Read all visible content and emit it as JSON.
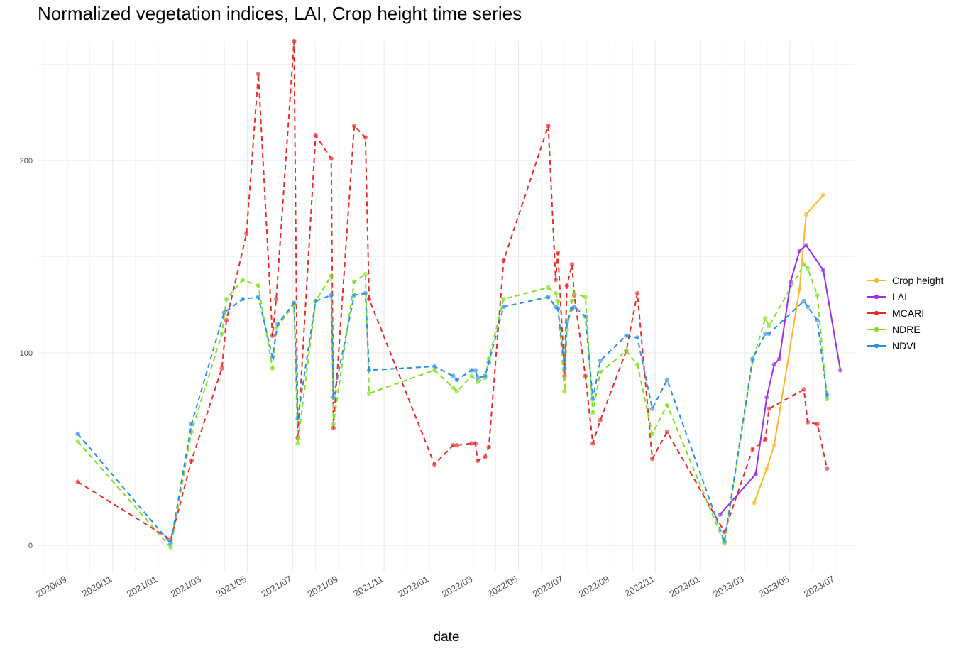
{
  "chart_data": {
    "type": "line",
    "title": "Normalized vegetation indices, LAI, Crop height time series",
    "xlabel": "date",
    "ylabel": "",
    "x_range": [
      "2020-07-23",
      "2023-07-28"
    ],
    "ylim": [
      -14,
      262
    ],
    "y_ticks": [
      0,
      100,
      200
    ],
    "y_minor_ticks": [
      50,
      150,
      250
    ],
    "x_tick_labels": [
      "2020/09",
      "2020/11",
      "2021/01",
      "2021/03",
      "2021/05",
      "2021/07",
      "2021/09",
      "2021/11",
      "2022/01",
      "2022/03",
      "2022/05",
      "2022/07",
      "2022/09",
      "2022/11",
      "2023/01",
      "2023/03",
      "2023/05",
      "2023/07"
    ],
    "x_tick_dates": [
      "2020-09-01",
      "2020-11-01",
      "2021-01-01",
      "2021-03-01",
      "2021-05-01",
      "2021-07-01",
      "2021-09-01",
      "2021-11-01",
      "2022-01-01",
      "2022-03-01",
      "2022-05-01",
      "2022-07-01",
      "2022-09-01",
      "2022-11-01",
      "2023-01-01",
      "2023-03-01",
      "2023-05-01",
      "2023-07-01"
    ],
    "grid": true,
    "legend_position": "right",
    "series": [
      {
        "name": "Crop height",
        "color": "#FBB829",
        "dashed": false,
        "points": [
          [
            "2023-03-14",
            22
          ],
          [
            "2023-03-31",
            40
          ],
          [
            "2023-04-10",
            52
          ],
          [
            "2023-05-14",
            133
          ],
          [
            "2023-05-23",
            172
          ],
          [
            "2023-06-15",
            182
          ]
        ]
      },
      {
        "name": "LAI",
        "color": "#9B30E0",
        "dashed": false,
        "points": [
          [
            "2023-01-27",
            16
          ],
          [
            "2023-03-16",
            37
          ],
          [
            "2023-03-31",
            77
          ],
          [
            "2023-04-10",
            94
          ],
          [
            "2023-04-17",
            97
          ],
          [
            "2023-05-02",
            137
          ],
          [
            "2023-05-14",
            153
          ],
          [
            "2023-05-23",
            156
          ],
          [
            "2023-06-15",
            143
          ],
          [
            "2023-07-08",
            91
          ]
        ]
      },
      {
        "name": "MCARI",
        "color": "#E52B2B",
        "dashed": true,
        "points": [
          [
            "2020-09-15",
            33
          ],
          [
            "2021-01-18",
            3
          ],
          [
            "2021-02-15",
            44
          ],
          [
            "2021-03-28",
            92
          ],
          [
            "2021-04-03",
            117
          ],
          [
            "2021-04-30",
            162
          ],
          [
            "2021-05-16",
            245
          ],
          [
            "2021-06-04",
            109
          ],
          [
            "2021-06-09",
            128
          ],
          [
            "2021-07-03",
            262
          ],
          [
            "2021-07-08",
            56
          ],
          [
            "2021-08-01",
            213
          ],
          [
            "2021-08-22",
            201
          ],
          [
            "2021-08-25",
            61
          ],
          [
            "2021-09-22",
            218
          ],
          [
            "2021-10-07",
            212
          ],
          [
            "2021-10-12",
            128
          ],
          [
            "2022-01-08",
            42
          ],
          [
            "2022-02-02",
            52
          ],
          [
            "2022-02-07",
            52
          ],
          [
            "2022-02-27",
            53
          ],
          [
            "2022-03-04",
            53
          ],
          [
            "2022-03-07",
            44
          ],
          [
            "2022-03-17",
            46
          ],
          [
            "2022-03-22",
            51
          ],
          [
            "2022-04-11",
            148
          ],
          [
            "2022-06-10",
            218
          ],
          [
            "2022-06-20",
            138
          ],
          [
            "2022-06-23",
            152
          ],
          [
            "2022-07-02",
            88
          ],
          [
            "2022-07-05",
            135
          ],
          [
            "2022-07-12",
            146
          ],
          [
            "2022-07-15",
            130
          ],
          [
            "2022-07-30",
            88
          ],
          [
            "2022-08-09",
            53
          ],
          [
            "2022-08-19",
            65
          ],
          [
            "2022-09-23",
            101
          ],
          [
            "2022-10-08",
            131
          ],
          [
            "2022-10-28",
            45
          ],
          [
            "2022-11-17",
            59
          ],
          [
            "2023-02-02",
            7
          ],
          [
            "2023-03-12",
            50
          ],
          [
            "2023-03-29",
            55
          ],
          [
            "2023-04-03",
            71
          ],
          [
            "2023-05-20",
            81
          ],
          [
            "2023-05-25",
            64
          ],
          [
            "2023-06-07",
            63
          ],
          [
            "2023-06-20",
            40
          ]
        ]
      },
      {
        "name": "NDRE",
        "color": "#7FE021",
        "dashed": true,
        "points": [
          [
            "2020-09-15",
            54
          ],
          [
            "2021-01-18",
            -1
          ],
          [
            "2021-02-15",
            59
          ],
          [
            "2021-03-28",
            110
          ],
          [
            "2021-04-03",
            128
          ],
          [
            "2021-04-25",
            138
          ],
          [
            "2021-05-16",
            135
          ],
          [
            "2021-06-04",
            92
          ],
          [
            "2021-06-09",
            113
          ],
          [
            "2021-07-03",
            125
          ],
          [
            "2021-07-08",
            53
          ],
          [
            "2021-08-01",
            127
          ],
          [
            "2021-08-22",
            140
          ],
          [
            "2021-08-25",
            63
          ],
          [
            "2021-09-22",
            137
          ],
          [
            "2021-10-07",
            141
          ],
          [
            "2021-10-12",
            79
          ],
          [
            "2022-01-08",
            91
          ],
          [
            "2022-02-02",
            82
          ],
          [
            "2022-02-07",
            80
          ],
          [
            "2022-02-27",
            88
          ],
          [
            "2022-03-07",
            85
          ],
          [
            "2022-03-17",
            87
          ],
          [
            "2022-03-22",
            97
          ],
          [
            "2022-04-11",
            128
          ],
          [
            "2022-06-10",
            134
          ],
          [
            "2022-06-20",
            131
          ],
          [
            "2022-06-23",
            127
          ],
          [
            "2022-07-02",
            80
          ],
          [
            "2022-07-05",
            112
          ],
          [
            "2022-07-12",
            127
          ],
          [
            "2022-07-15",
            131
          ],
          [
            "2022-07-30",
            129
          ],
          [
            "2022-08-09",
            69
          ],
          [
            "2022-08-19",
            90
          ],
          [
            "2022-09-23",
            101
          ],
          [
            "2022-10-08",
            94
          ],
          [
            "2022-10-28",
            58
          ],
          [
            "2022-11-17",
            73
          ],
          [
            "2023-02-02",
            1
          ],
          [
            "2023-03-12",
            96
          ],
          [
            "2023-03-29",
            118
          ],
          [
            "2023-04-03",
            114
          ],
          [
            "2023-05-20",
            146
          ],
          [
            "2023-05-25",
            144
          ],
          [
            "2023-06-07",
            130
          ],
          [
            "2023-06-20",
            76
          ]
        ]
      },
      {
        "name": "NDVI",
        "color": "#2A8FE0",
        "dashed": true,
        "points": [
          [
            "2020-09-15",
            58
          ],
          [
            "2021-01-18",
            1
          ],
          [
            "2021-02-15",
            63
          ],
          [
            "2021-03-31",
            121
          ],
          [
            "2021-04-25",
            128
          ],
          [
            "2021-05-16",
            129
          ],
          [
            "2021-06-04",
            98
          ],
          [
            "2021-06-11",
            115
          ],
          [
            "2021-07-03",
            126
          ],
          [
            "2021-07-08",
            66
          ],
          [
            "2021-08-01",
            127
          ],
          [
            "2021-08-22",
            130
          ],
          [
            "2021-08-25",
            77
          ],
          [
            "2021-09-22",
            130
          ],
          [
            "2021-10-07",
            131
          ],
          [
            "2021-10-12",
            91
          ],
          [
            "2022-01-08",
            93
          ],
          [
            "2022-02-02",
            88
          ],
          [
            "2022-02-07",
            86
          ],
          [
            "2022-02-27",
            91
          ],
          [
            "2022-03-04",
            91
          ],
          [
            "2022-03-07",
            87
          ],
          [
            "2022-03-17",
            88
          ],
          [
            "2022-03-22",
            95
          ],
          [
            "2022-04-11",
            124
          ],
          [
            "2022-06-10",
            129
          ],
          [
            "2022-06-20",
            124
          ],
          [
            "2022-06-23",
            123
          ],
          [
            "2022-07-02",
            92
          ],
          [
            "2022-07-05",
            116
          ],
          [
            "2022-07-12",
            123
          ],
          [
            "2022-07-15",
            124
          ],
          [
            "2022-07-30",
            119
          ],
          [
            "2022-08-09",
            76
          ],
          [
            "2022-08-19",
            96
          ],
          [
            "2022-09-23",
            109
          ],
          [
            "2022-10-08",
            108
          ],
          [
            "2022-10-28",
            71
          ],
          [
            "2022-11-17",
            86
          ],
          [
            "2023-02-02",
            2
          ],
          [
            "2023-03-12",
            97
          ],
          [
            "2023-03-29",
            110
          ],
          [
            "2023-04-03",
            110
          ],
          [
            "2023-05-20",
            127
          ],
          [
            "2023-05-25",
            124
          ],
          [
            "2023-06-07",
            117
          ],
          [
            "2023-06-20",
            78
          ]
        ]
      }
    ]
  }
}
